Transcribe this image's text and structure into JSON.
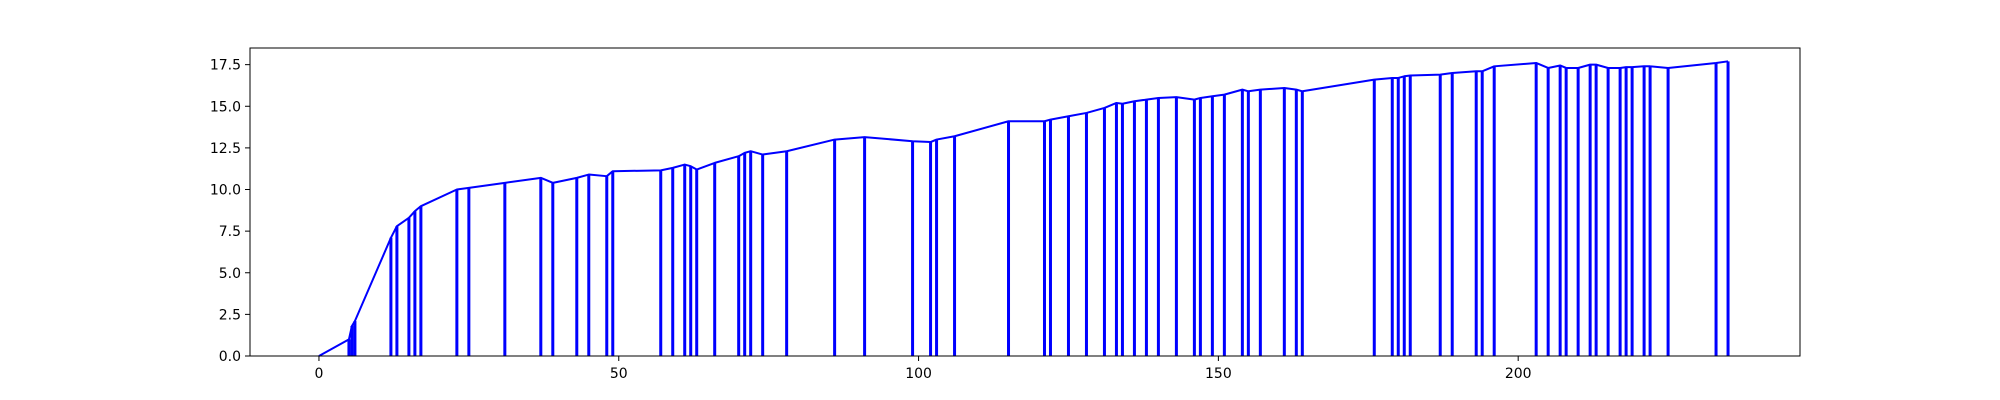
{
  "chart_data": {
    "type": "line",
    "title": "",
    "xlabel": "",
    "ylabel": "",
    "xlim": [
      -11.5,
      247
    ],
    "ylim": [
      0,
      18.5
    ],
    "x_ticks": [
      0,
      50,
      100,
      150,
      200
    ],
    "x_tick_labels": [
      "0",
      "50",
      "100",
      "150",
      "200"
    ],
    "y_ticks": [
      0,
      2.5,
      5,
      7.5,
      10,
      12.5,
      15,
      17.5
    ],
    "y_tick_labels": [
      "0.0",
      "2.5",
      "5.0",
      "7.5",
      "10.0",
      "12.5",
      "15.0",
      "17.5"
    ],
    "grid": false,
    "legend": "none",
    "color": "#0000ff",
    "series": [
      {
        "x": [
          0,
          5,
          5.5,
          6,
          12,
          13,
          15,
          16,
          17,
          23,
          25,
          31,
          37,
          39,
          43,
          45,
          48,
          49,
          57,
          59,
          61,
          62,
          63,
          66,
          70,
          71,
          72,
          74,
          78,
          86,
          91,
          99,
          102,
          103,
          106,
          115,
          121,
          122,
          125,
          128,
          131,
          133,
          134,
          136,
          138,
          140,
          143,
          146,
          147,
          149,
          151,
          154,
          155,
          157,
          161,
          163,
          164,
          176,
          179,
          180,
          181,
          182,
          187,
          189,
          193,
          194,
          196,
          203,
          205,
          207,
          208,
          210,
          212,
          213,
          215,
          217,
          218,
          219,
          221,
          222,
          225,
          233,
          235
        ],
        "y": [
          0,
          1.0,
          1.8,
          2.1,
          7.1,
          7.8,
          8.3,
          8.7,
          9.0,
          10.0,
          10.1,
          10.4,
          10.7,
          10.4,
          10.7,
          10.9,
          10.8,
          11.1,
          11.15,
          11.3,
          11.5,
          11.4,
          11.2,
          11.6,
          12.0,
          12.2,
          12.3,
          12.1,
          12.3,
          13.0,
          13.15,
          12.9,
          12.85,
          13.0,
          13.2,
          14.1,
          14.1,
          14.2,
          14.4,
          14.6,
          14.9,
          15.2,
          15.15,
          15.3,
          15.4,
          15.5,
          15.55,
          15.4,
          15.5,
          15.6,
          15.7,
          16.0,
          15.9,
          16.0,
          16.1,
          16.0,
          15.9,
          16.6,
          16.7,
          16.7,
          16.8,
          16.85,
          16.9,
          17.0,
          17.1,
          17.1,
          17.4,
          17.6,
          17.3,
          17.45,
          17.3,
          17.3,
          17.5,
          17.5,
          17.3,
          17.3,
          17.35,
          17.35,
          17.4,
          17.4,
          17.3,
          17.6,
          17.7
        ]
      }
    ]
  }
}
